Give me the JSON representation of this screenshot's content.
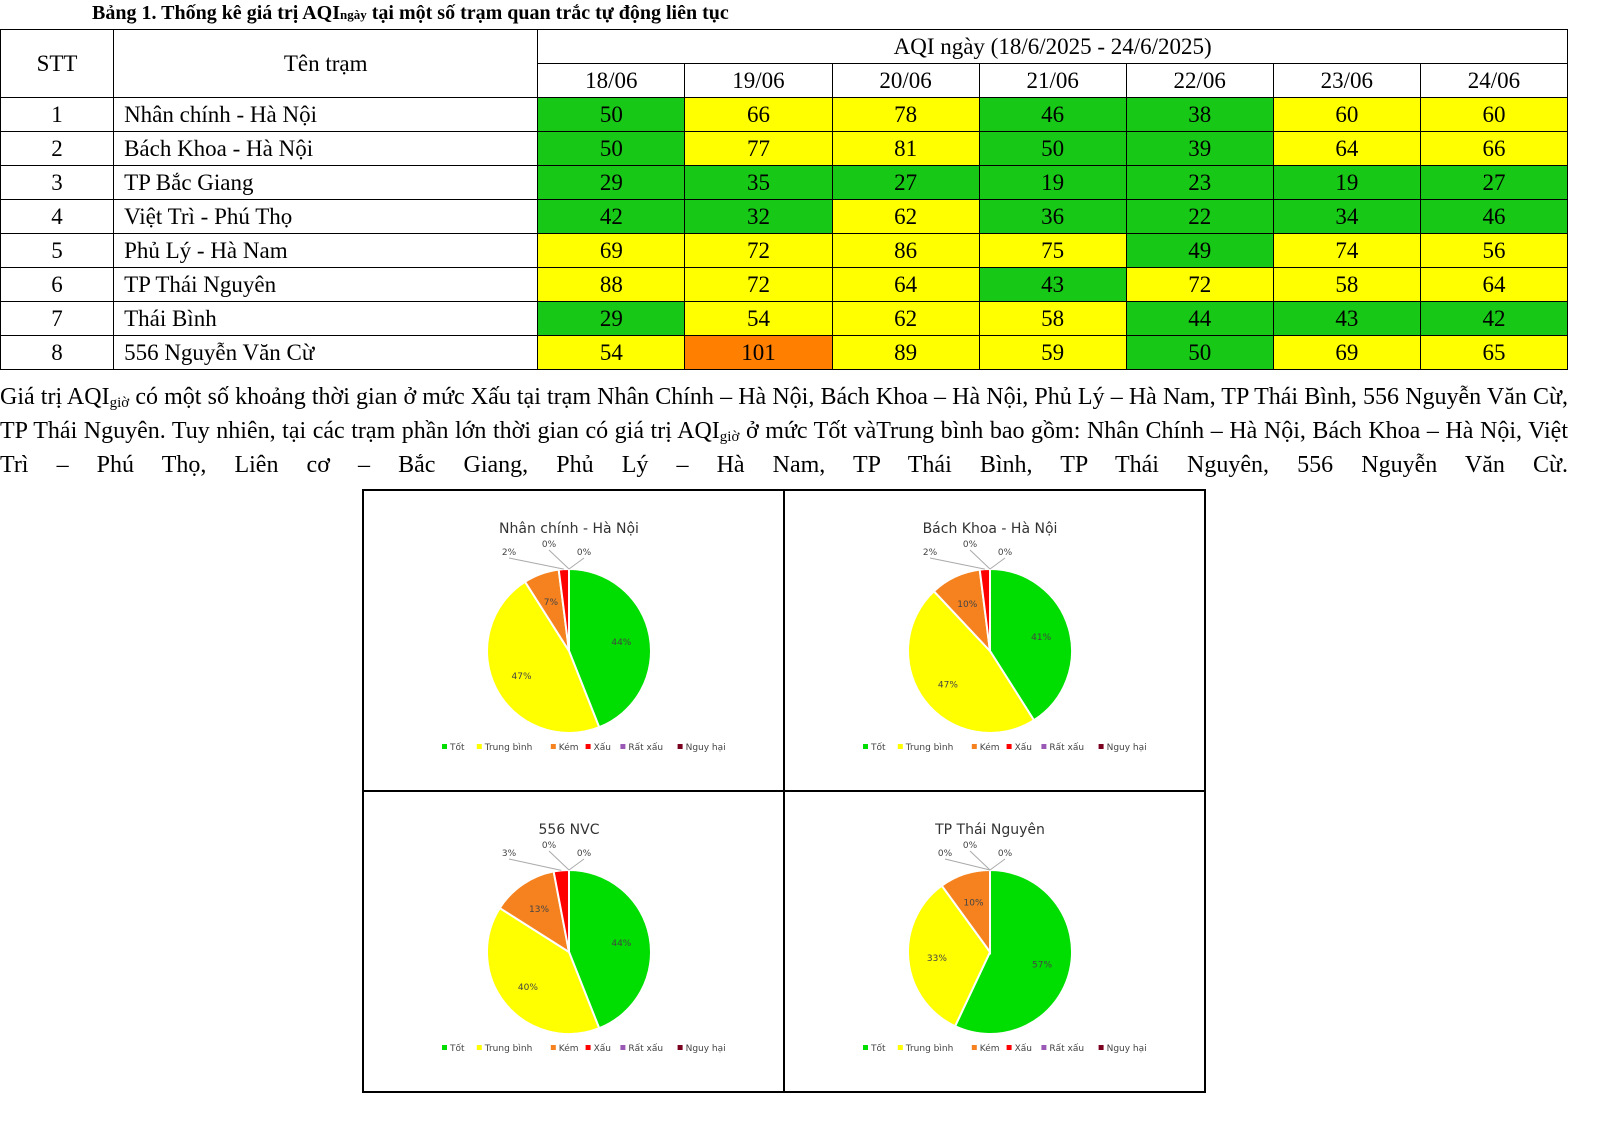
{
  "caption": {
    "prefix": "Bảng 1. Thống kê giá trị AQI",
    "sub": "ngày",
    "suffix": " tại một số trạm quan trắc tự động liên tục"
  },
  "table": {
    "headers": {
      "stt": "STT",
      "name": "Tên trạm",
      "group": "AQI ngày (18/6/2025 - 24/6/2025)"
    },
    "dates": [
      "18/06",
      "19/06",
      "20/06",
      "21/06",
      "22/06",
      "23/06",
      "24/06"
    ],
    "rows": [
      {
        "stt": "1",
        "name": "Nhân chính - Hà Nội",
        "values": [
          50,
          66,
          78,
          46,
          38,
          60,
          60
        ]
      },
      {
        "stt": "2",
        "name": "Bách Khoa - Hà Nội",
        "values": [
          50,
          77,
          81,
          50,
          39,
          64,
          66
        ]
      },
      {
        "stt": "3",
        "name": "TP Bắc Giang",
        "values": [
          29,
          35,
          27,
          19,
          23,
          19,
          27
        ]
      },
      {
        "stt": "4",
        "name": "Việt Trì - Phú Thọ",
        "values": [
          42,
          32,
          62,
          36,
          22,
          34,
          46
        ]
      },
      {
        "stt": "5",
        "name": "Phủ Lý - Hà Nam",
        "values": [
          69,
          72,
          86,
          75,
          49,
          74,
          56
        ]
      },
      {
        "stt": "6",
        "name": "TP Thái Nguyên",
        "values": [
          88,
          72,
          64,
          43,
          72,
          58,
          64
        ]
      },
      {
        "stt": "7",
        "name": "Thái Bình",
        "values": [
          29,
          54,
          62,
          58,
          44,
          43,
          42
        ]
      },
      {
        "stt": "8",
        "name": "556 Nguyễn Văn Cừ",
        "values": [
          54,
          101,
          89,
          59,
          50,
          69,
          65
        ]
      }
    ],
    "colors": {
      "good": "#17c817",
      "moderate": "#ffff00",
      "poor": "#ff7f00"
    }
  },
  "paragraph": {
    "s1": " Giá trị AQI",
    "sub1": "giờ",
    "s2": " có một số khoảng thời gian ở mức Xấu tại trạm Nhân Chính – Hà Nội, Bách Khoa – Hà Nội, Phủ Lý – Hà Nam, TP Thái Bình, 556 Nguyễn Văn Cừ, TP Thái Nguyên. Tuy nhiên, tại các trạm phần lớn thời gian có giá trị AQI",
    "sub2": "giờ",
    "s3": " ở mức Tốt vàTrung bình bao gồm: Nhân Chính – Hà Nội, Bách Khoa – Hà Nội, Việt Trì – Phú Thọ, Liên cơ – Bắc Giang, Phủ Lý – Hà Nam, TP Thái Bình, TP Thái Nguyên, 556 Nguyễn Văn Cừ."
  },
  "chart_data": [
    {
      "type": "pie",
      "title": "Nhân chính - Hà Nội",
      "categories": [
        "Tốt",
        "Trung bình",
        "Kém",
        "Xấu",
        "Rất xấu",
        "Nguy hại"
      ],
      "values": [
        44,
        47,
        7,
        2,
        0,
        0
      ],
      "legend": "bottom"
    },
    {
      "type": "pie",
      "title": "Bách Khoa - Hà Nội",
      "categories": [
        "Tốt",
        "Trung bình",
        "Kém",
        "Xấu",
        "Rất xấu",
        "Nguy hại"
      ],
      "values": [
        41,
        47,
        10,
        2,
        0,
        0
      ],
      "legend": "bottom"
    },
    {
      "type": "pie",
      "title": "556 NVC",
      "categories": [
        "Tốt",
        "Trung bình",
        "Kém",
        "Xấu",
        "Rất xấu",
        "Nguy hại"
      ],
      "values": [
        44,
        40,
        13,
        3,
        0,
        0
      ],
      "legend": "bottom"
    },
    {
      "type": "pie",
      "title": "TP Thái Nguyên",
      "categories": [
        "Tốt",
        "Trung bình",
        "Kém",
        "Xấu",
        "Rất xấu",
        "Nguy hại"
      ],
      "values": [
        57,
        33,
        10,
        0,
        0,
        0
      ],
      "legend": "bottom"
    }
  ],
  "pie_colors": [
    "#00dd00",
    "#ffff00",
    "#f5821f",
    "#ff0000",
    "#9b59b6",
    "#7b0020"
  ]
}
